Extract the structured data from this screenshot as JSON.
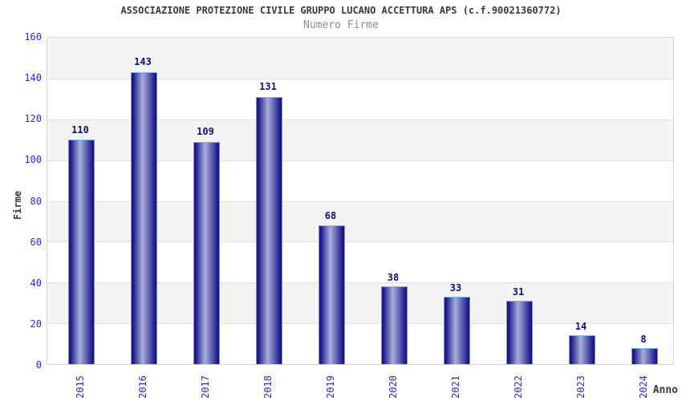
{
  "chart_data": {
    "type": "bar",
    "title": "ASSOCIAZIONE PROTEZIONE CIVILE GRUPPO LUCANO ACCETTURA APS (c.f.90021360772)",
    "subtitle": "Numero Firme",
    "xlabel": "Anno",
    "ylabel": "Firme",
    "categories": [
      "2015",
      "2016",
      "2017",
      "2018",
      "2019",
      "2020",
      "2021",
      "2022",
      "2023",
      "2024"
    ],
    "values": [
      110,
      143,
      109,
      131,
      68,
      38,
      33,
      31,
      14,
      8
    ],
    "ylim": [
      0,
      160
    ],
    "yticks": [
      0,
      20,
      40,
      60,
      80,
      100,
      120,
      140,
      160
    ],
    "grid": true,
    "legend": "none",
    "banded_background": true,
    "bar_labels_shown": true
  },
  "colors": {
    "bar_edge_dark": "#15157f",
    "bar_body_dark": "#1d1d8f",
    "bar_center_light": "#a8aed8",
    "bar_border": "#5b9fd8",
    "bar_border_top": "#79b6ea",
    "tick_label_blue": "#2b2bdb",
    "value_label_navy": "#10107d",
    "band_gray": "#f3f3f3",
    "band_white": "#ffffff",
    "grid_line": "#e0e0e0",
    "plot_border": "#d6d6d6",
    "title_color": "#3a3a3a",
    "subtitle_color": "#8c8c8c",
    "background": "#ffffff"
  }
}
